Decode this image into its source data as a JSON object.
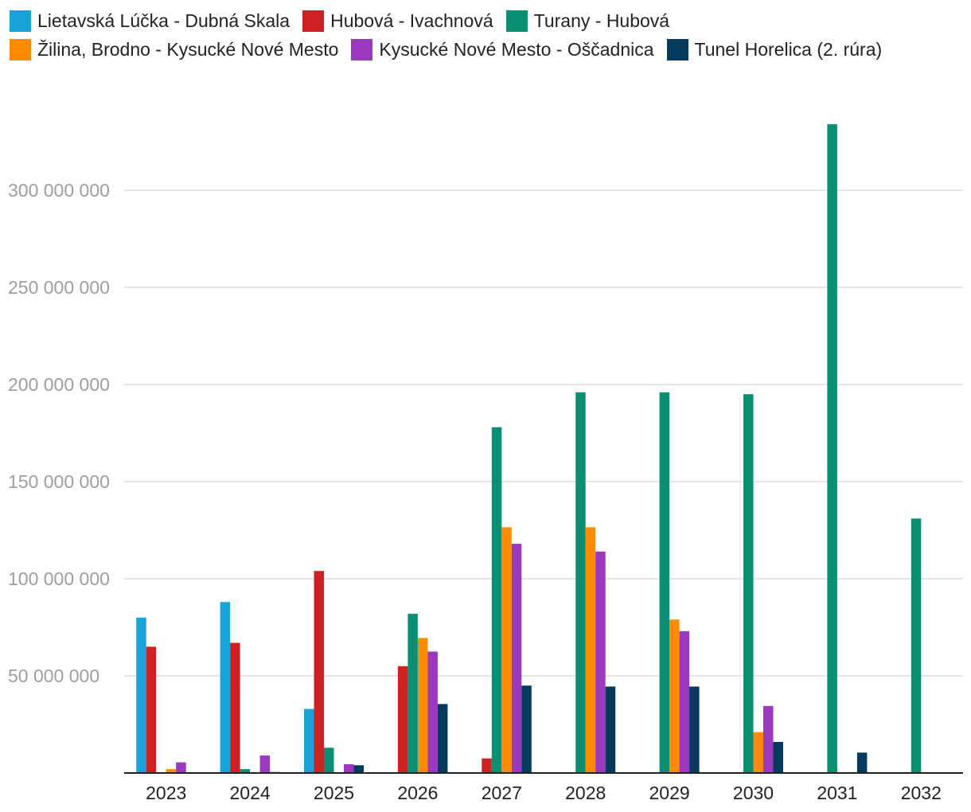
{
  "chart_data": {
    "type": "bar",
    "title": "",
    "xlabel": "",
    "ylabel": "",
    "ylim": [
      0,
      340000000
    ],
    "yticks": [
      50000000,
      100000000,
      150000000,
      200000000,
      250000000,
      300000000
    ],
    "ytick_labels": [
      "50 000 000",
      "100 000 000",
      "150 000 000",
      "200 000 000",
      "250 000 000",
      "300 000 000"
    ],
    "grid": true,
    "legend_position": "top",
    "categories": [
      "2023",
      "2024",
      "2025",
      "2026",
      "2027",
      "2028",
      "2029",
      "2030",
      "2031",
      "2032"
    ],
    "series": [
      {
        "name": "Lietavská Lúčka - Dubná Skala",
        "color": "#1aa3d8",
        "values": [
          80000000,
          88000000,
          33000000,
          0,
          0,
          0,
          0,
          0,
          0,
          0
        ]
      },
      {
        "name": "Hubová - Ivachnová",
        "color": "#cc2224",
        "values": [
          65000000,
          67000000,
          104000000,
          55000000,
          7500000,
          0,
          0,
          0,
          0,
          0
        ]
      },
      {
        "name": "Turany - Hubová",
        "color": "#0a8f72",
        "values": [
          0,
          2000000,
          13000000,
          82000000,
          178000000,
          196000000,
          196000000,
          195000000,
          334000000,
          131000000
        ]
      },
      {
        "name": "Žilina, Brodno - Kysucké Nové Mesto",
        "color": "#ff8c00",
        "values": [
          2000000,
          0,
          0,
          69500000,
          126500000,
          126500000,
          79000000,
          21000000,
          0,
          0
        ]
      },
      {
        "name": "Kysucké Nové Mesto - Oščadnica",
        "color": "#9b39be",
        "values": [
          5500000,
          9000000,
          4500000,
          62500000,
          118000000,
          114000000,
          73000000,
          34500000,
          0,
          0
        ]
      },
      {
        "name": "Tunel Horelica (2. rúra)",
        "color": "#043a5c",
        "values": [
          0,
          500000,
          4000000,
          35500000,
          45000000,
          44500000,
          44500000,
          16000000,
          10500000,
          0
        ]
      }
    ]
  },
  "legend_rows": [
    [
      0,
      1,
      2
    ],
    [
      3,
      4,
      5
    ]
  ]
}
